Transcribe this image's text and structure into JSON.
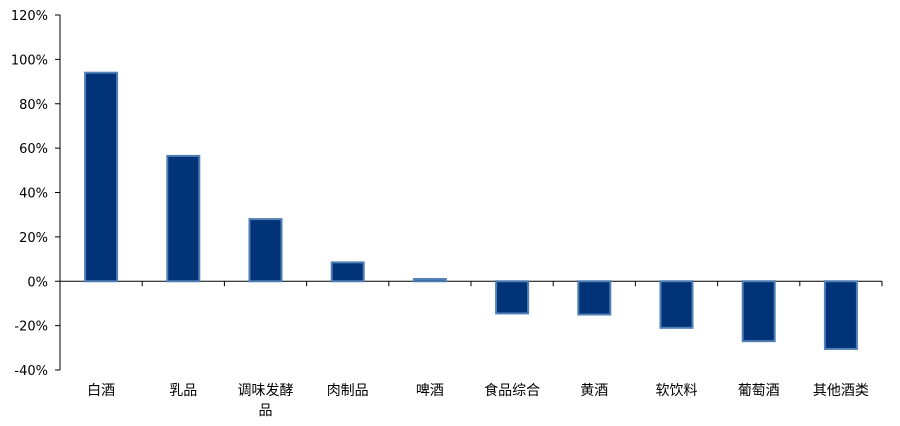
{
  "chart_data": {
    "type": "bar",
    "categories": [
      "白酒",
      "乳品",
      "调味发酵品",
      "肉制品",
      "啤酒",
      "食品综合",
      "黄酒",
      "软饮料",
      "葡萄酒",
      "其他酒类"
    ],
    "category_label_lines": [
      [
        "白酒"
      ],
      [
        "乳品"
      ],
      [
        "调味发酵",
        "品"
      ],
      [
        "肉制品"
      ],
      [
        "啤酒"
      ],
      [
        "食品综合"
      ],
      [
        "黄酒"
      ],
      [
        "软饮料"
      ],
      [
        "葡萄酒"
      ],
      [
        "其他酒类"
      ]
    ],
    "values": [
      94,
      56.5,
      28,
      8.5,
      1,
      -14.5,
      -15,
      -21,
      -27,
      -30.5
    ],
    "ylim": [
      -40,
      120
    ],
    "yticks": [
      -40,
      -20,
      0,
      20,
      40,
      60,
      80,
      100,
      120
    ],
    "ytick_labels": [
      "-40%",
      "-20%",
      "0%",
      "20%",
      "40%",
      "60%",
      "80%",
      "100%",
      "120%"
    ],
    "title": "",
    "xlabel": "",
    "ylabel": "",
    "grid": false,
    "legend": "none",
    "colors": {
      "bar_fill": "#003377",
      "bar_edge": "#4f7fb4",
      "axis": "#000000"
    }
  }
}
